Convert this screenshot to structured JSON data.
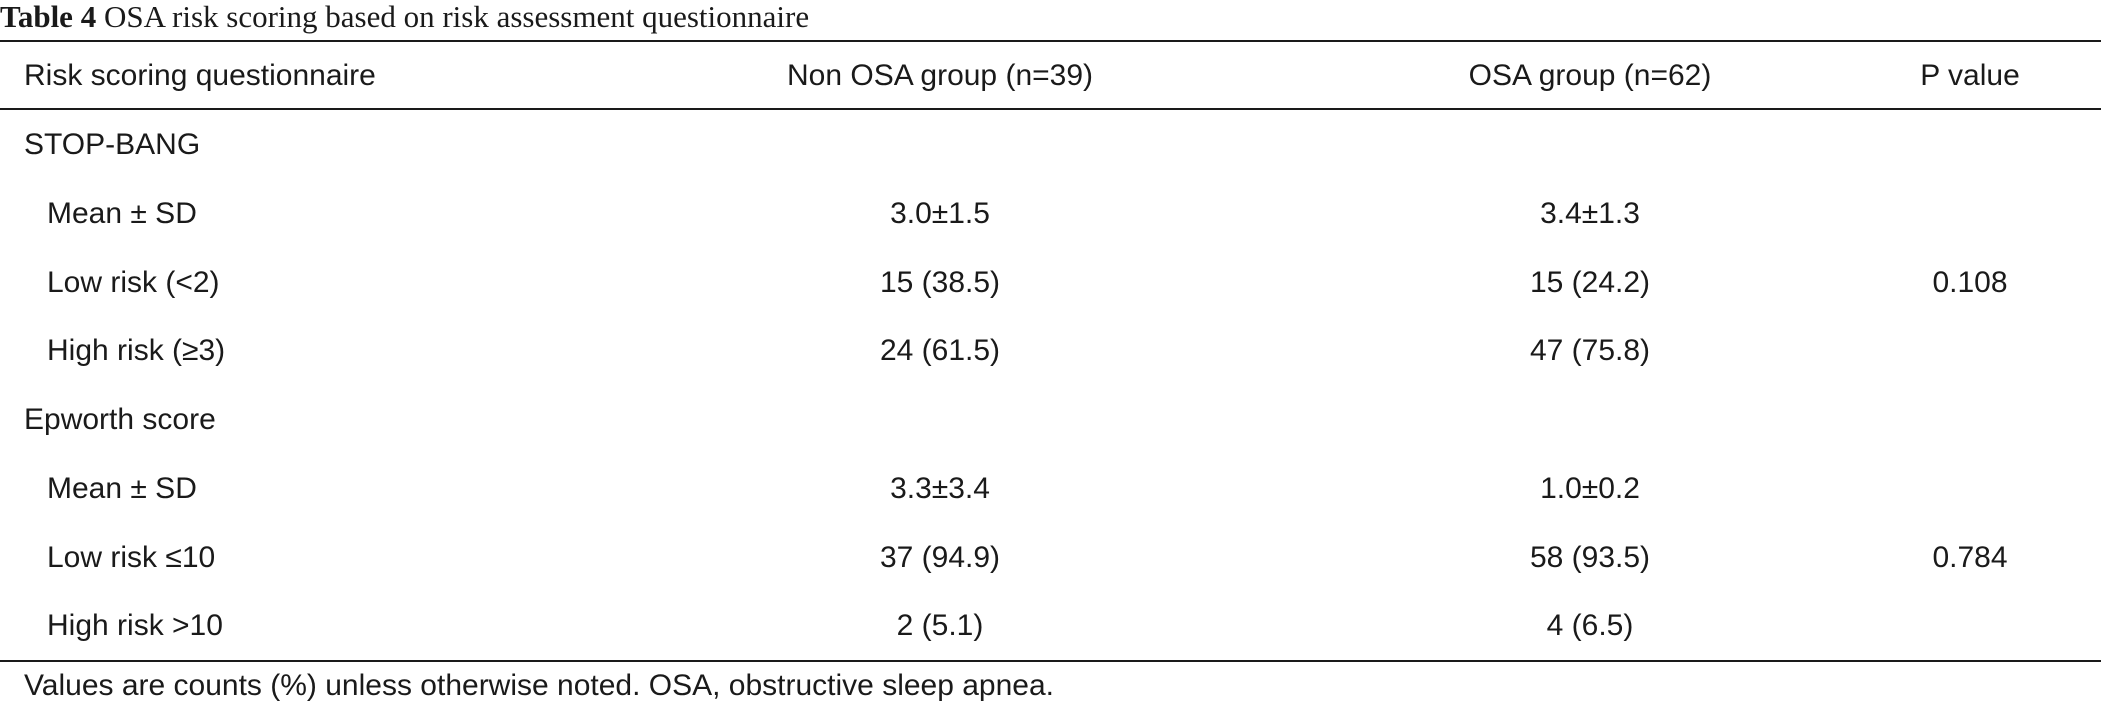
{
  "caption": {
    "label": "Table 4",
    "text": " OSA risk scoring based on risk assessment questionnaire"
  },
  "header": {
    "col1": "Risk scoring questionnaire",
    "col2": "Non OSA group (n=39)",
    "col3": "OSA group (n=62)",
    "col4": "P value"
  },
  "rows": [
    {
      "c1": "STOP-BANG",
      "c2": "",
      "c3": "",
      "c4": ""
    },
    {
      "c1": "Mean ± SD",
      "c2": "3.0±1.5",
      "c3": "3.4±1.3",
      "c4": ""
    },
    {
      "c1": "Low risk (<2)",
      "c2": "15 (38.5)",
      "c3": "15 (24.2)",
      "c4": "0.108"
    },
    {
      "c1": "High risk (≥3)",
      "c2": "24 (61.5)",
      "c3": "47 (75.8)",
      "c4": ""
    },
    {
      "c1": "Epworth score",
      "c2": "",
      "c3": "",
      "c4": ""
    },
    {
      "c1": "Mean ± SD",
      "c2": "3.3±3.4",
      "c3": "1.0±0.2",
      "c4": ""
    },
    {
      "c1": "Low risk ≤10",
      "c2": "37 (94.9)",
      "c3": "58 (93.5)",
      "c4": "0.784"
    },
    {
      "c1": "High risk >10",
      "c2": "2 (5.1)",
      "c3": "4 (6.5)",
      "c4": ""
    }
  ],
  "footnote": "Values are counts (%) unless otherwise noted. OSA, obstructive sleep apnea."
}
